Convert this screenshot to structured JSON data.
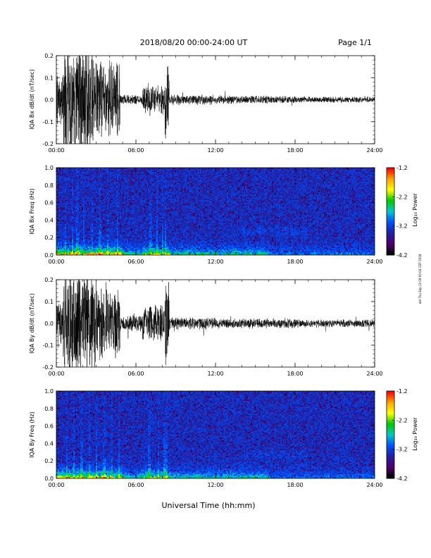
{
  "header": {
    "title": "2018/08/20  00:00-24:00 UT",
    "page": "Page 1/1"
  },
  "xlabel": "Universal Time (hh:mm)",
  "side_note": "eet Thu Sep 13 09:00:04 CDT 2018",
  "colorbar": {
    "label": "Log₁₀ Power",
    "ticks": [
      "-1.2",
      "-2.2",
      "-3.2",
      "-4.2"
    ],
    "colors": [
      "#ff0000",
      "#ffa500",
      "#ffff00",
      "#00c800",
      "#00c8c8",
      "#0050ff",
      "#2020a0",
      "#500070",
      "#000000"
    ]
  },
  "chart_data": [
    {
      "type": "line",
      "ylabel": "IQA Bx dB/dt (nT/sec)",
      "ylim": [
        -0.2,
        0.2
      ],
      "yticks": [
        "0.2",
        "0.1",
        "0.0",
        "-0.1",
        "-0.2"
      ],
      "xticks": [
        "00:00",
        "06:00",
        "12:00",
        "18:00",
        "24:00"
      ],
      "xlim_hours": [
        0,
        24
      ],
      "activity": [
        {
          "from": 0.0,
          "to": 0.5,
          "amplitude": 0.12
        },
        {
          "from": 0.5,
          "to": 3.0,
          "amplitude": 0.3
        },
        {
          "from": 3.0,
          "to": 4.8,
          "amplitude": 0.2
        },
        {
          "from": 4.8,
          "to": 6.5,
          "amplitude": 0.025
        },
        {
          "from": 6.5,
          "to": 8.2,
          "amplitude": 0.08
        },
        {
          "from": 8.2,
          "to": 8.5,
          "amplitude": 0.22
        },
        {
          "from": 8.5,
          "to": 12.0,
          "amplitude": 0.025
        },
        {
          "from": 12.0,
          "to": 18.0,
          "amplitude": 0.02
        },
        {
          "from": 18.0,
          "to": 24.0,
          "amplitude": 0.015
        }
      ]
    },
    {
      "type": "heatmap",
      "ylabel": "IQA Bx Freq (Hz)",
      "ylim": [
        0.0,
        1.0
      ],
      "yticks": [
        "1.0",
        "0.8",
        "0.6",
        "0.4",
        "0.2",
        "0.0"
      ],
      "xticks": [
        "00:00",
        "06:00",
        "12:00",
        "18:00",
        "24:00"
      ],
      "zlim": [
        -4.2,
        -1.2
      ]
    },
    {
      "type": "line",
      "ylabel": "IQA By dB/dt (nT/sec)",
      "ylim": [
        -0.2,
        0.2
      ],
      "yticks": [
        "0.2",
        "0.1",
        "0.0",
        "-0.1",
        "-0.2"
      ],
      "xticks": [
        "00:00",
        "06:00",
        "12:00",
        "18:00",
        "24:00"
      ],
      "xlim_hours": [
        0,
        24
      ],
      "activity": [
        {
          "from": 0.0,
          "to": 0.5,
          "amplitude": 0.12
        },
        {
          "from": 0.5,
          "to": 3.0,
          "amplitude": 0.3
        },
        {
          "from": 3.0,
          "to": 4.8,
          "amplitude": 0.2
        },
        {
          "from": 4.8,
          "to": 6.5,
          "amplitude": 0.04
        },
        {
          "from": 6.5,
          "to": 8.2,
          "amplitude": 0.09
        },
        {
          "from": 8.2,
          "to": 8.5,
          "amplitude": 0.22
        },
        {
          "from": 8.5,
          "to": 12.0,
          "amplitude": 0.03
        },
        {
          "from": 12.0,
          "to": 18.0,
          "amplitude": 0.025
        },
        {
          "from": 18.0,
          "to": 24.0,
          "amplitude": 0.02
        }
      ]
    },
    {
      "type": "heatmap",
      "ylabel": "IQA By Freq (Hz)",
      "ylim": [
        0.0,
        1.0
      ],
      "yticks": [
        "1.0",
        "0.8",
        "0.6",
        "0.4",
        "0.2",
        "0.0"
      ],
      "xticks": [
        "00:00",
        "06:00",
        "12:00",
        "18:00",
        "24:00"
      ],
      "zlim": [
        -4.2,
        -1.2
      ]
    }
  ]
}
